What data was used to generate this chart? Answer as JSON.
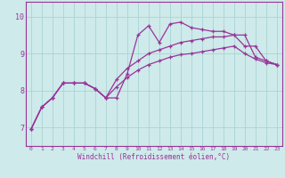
{
  "xlabel": "Windchill (Refroidissement éolien,°C)",
  "ylabel": "",
  "bg_color": "#ceeaea",
  "grid_color": "#aad4d4",
  "line_color": "#993399",
  "marker": "+",
  "xlim": [
    -0.5,
    23.5
  ],
  "ylim": [
    6.5,
    10.4
  ],
  "xticks": [
    0,
    1,
    2,
    3,
    4,
    5,
    6,
    7,
    8,
    9,
    10,
    11,
    12,
    13,
    14,
    15,
    16,
    17,
    18,
    19,
    20,
    21,
    22,
    23
  ],
  "yticks": [
    7,
    8,
    9,
    10
  ],
  "series": [
    [
      6.95,
      7.55,
      7.8,
      8.2,
      8.2,
      8.2,
      8.05,
      7.8,
      7.8,
      8.45,
      9.5,
      9.75,
      9.3,
      9.8,
      9.85,
      9.7,
      9.65,
      9.6,
      9.6,
      9.5,
      9.5,
      8.9,
      8.8,
      8.7
    ],
    [
      6.95,
      7.55,
      7.8,
      8.2,
      8.2,
      8.2,
      8.05,
      7.8,
      8.3,
      8.6,
      8.8,
      9.0,
      9.1,
      9.2,
      9.3,
      9.35,
      9.4,
      9.45,
      9.45,
      9.5,
      9.2,
      9.2,
      8.8,
      8.7
    ],
    [
      6.95,
      7.55,
      7.8,
      8.2,
      8.2,
      8.2,
      8.05,
      7.8,
      8.1,
      8.35,
      8.55,
      8.7,
      8.8,
      8.9,
      8.97,
      9.0,
      9.05,
      9.1,
      9.15,
      9.2,
      9.0,
      8.85,
      8.75,
      8.7
    ]
  ]
}
